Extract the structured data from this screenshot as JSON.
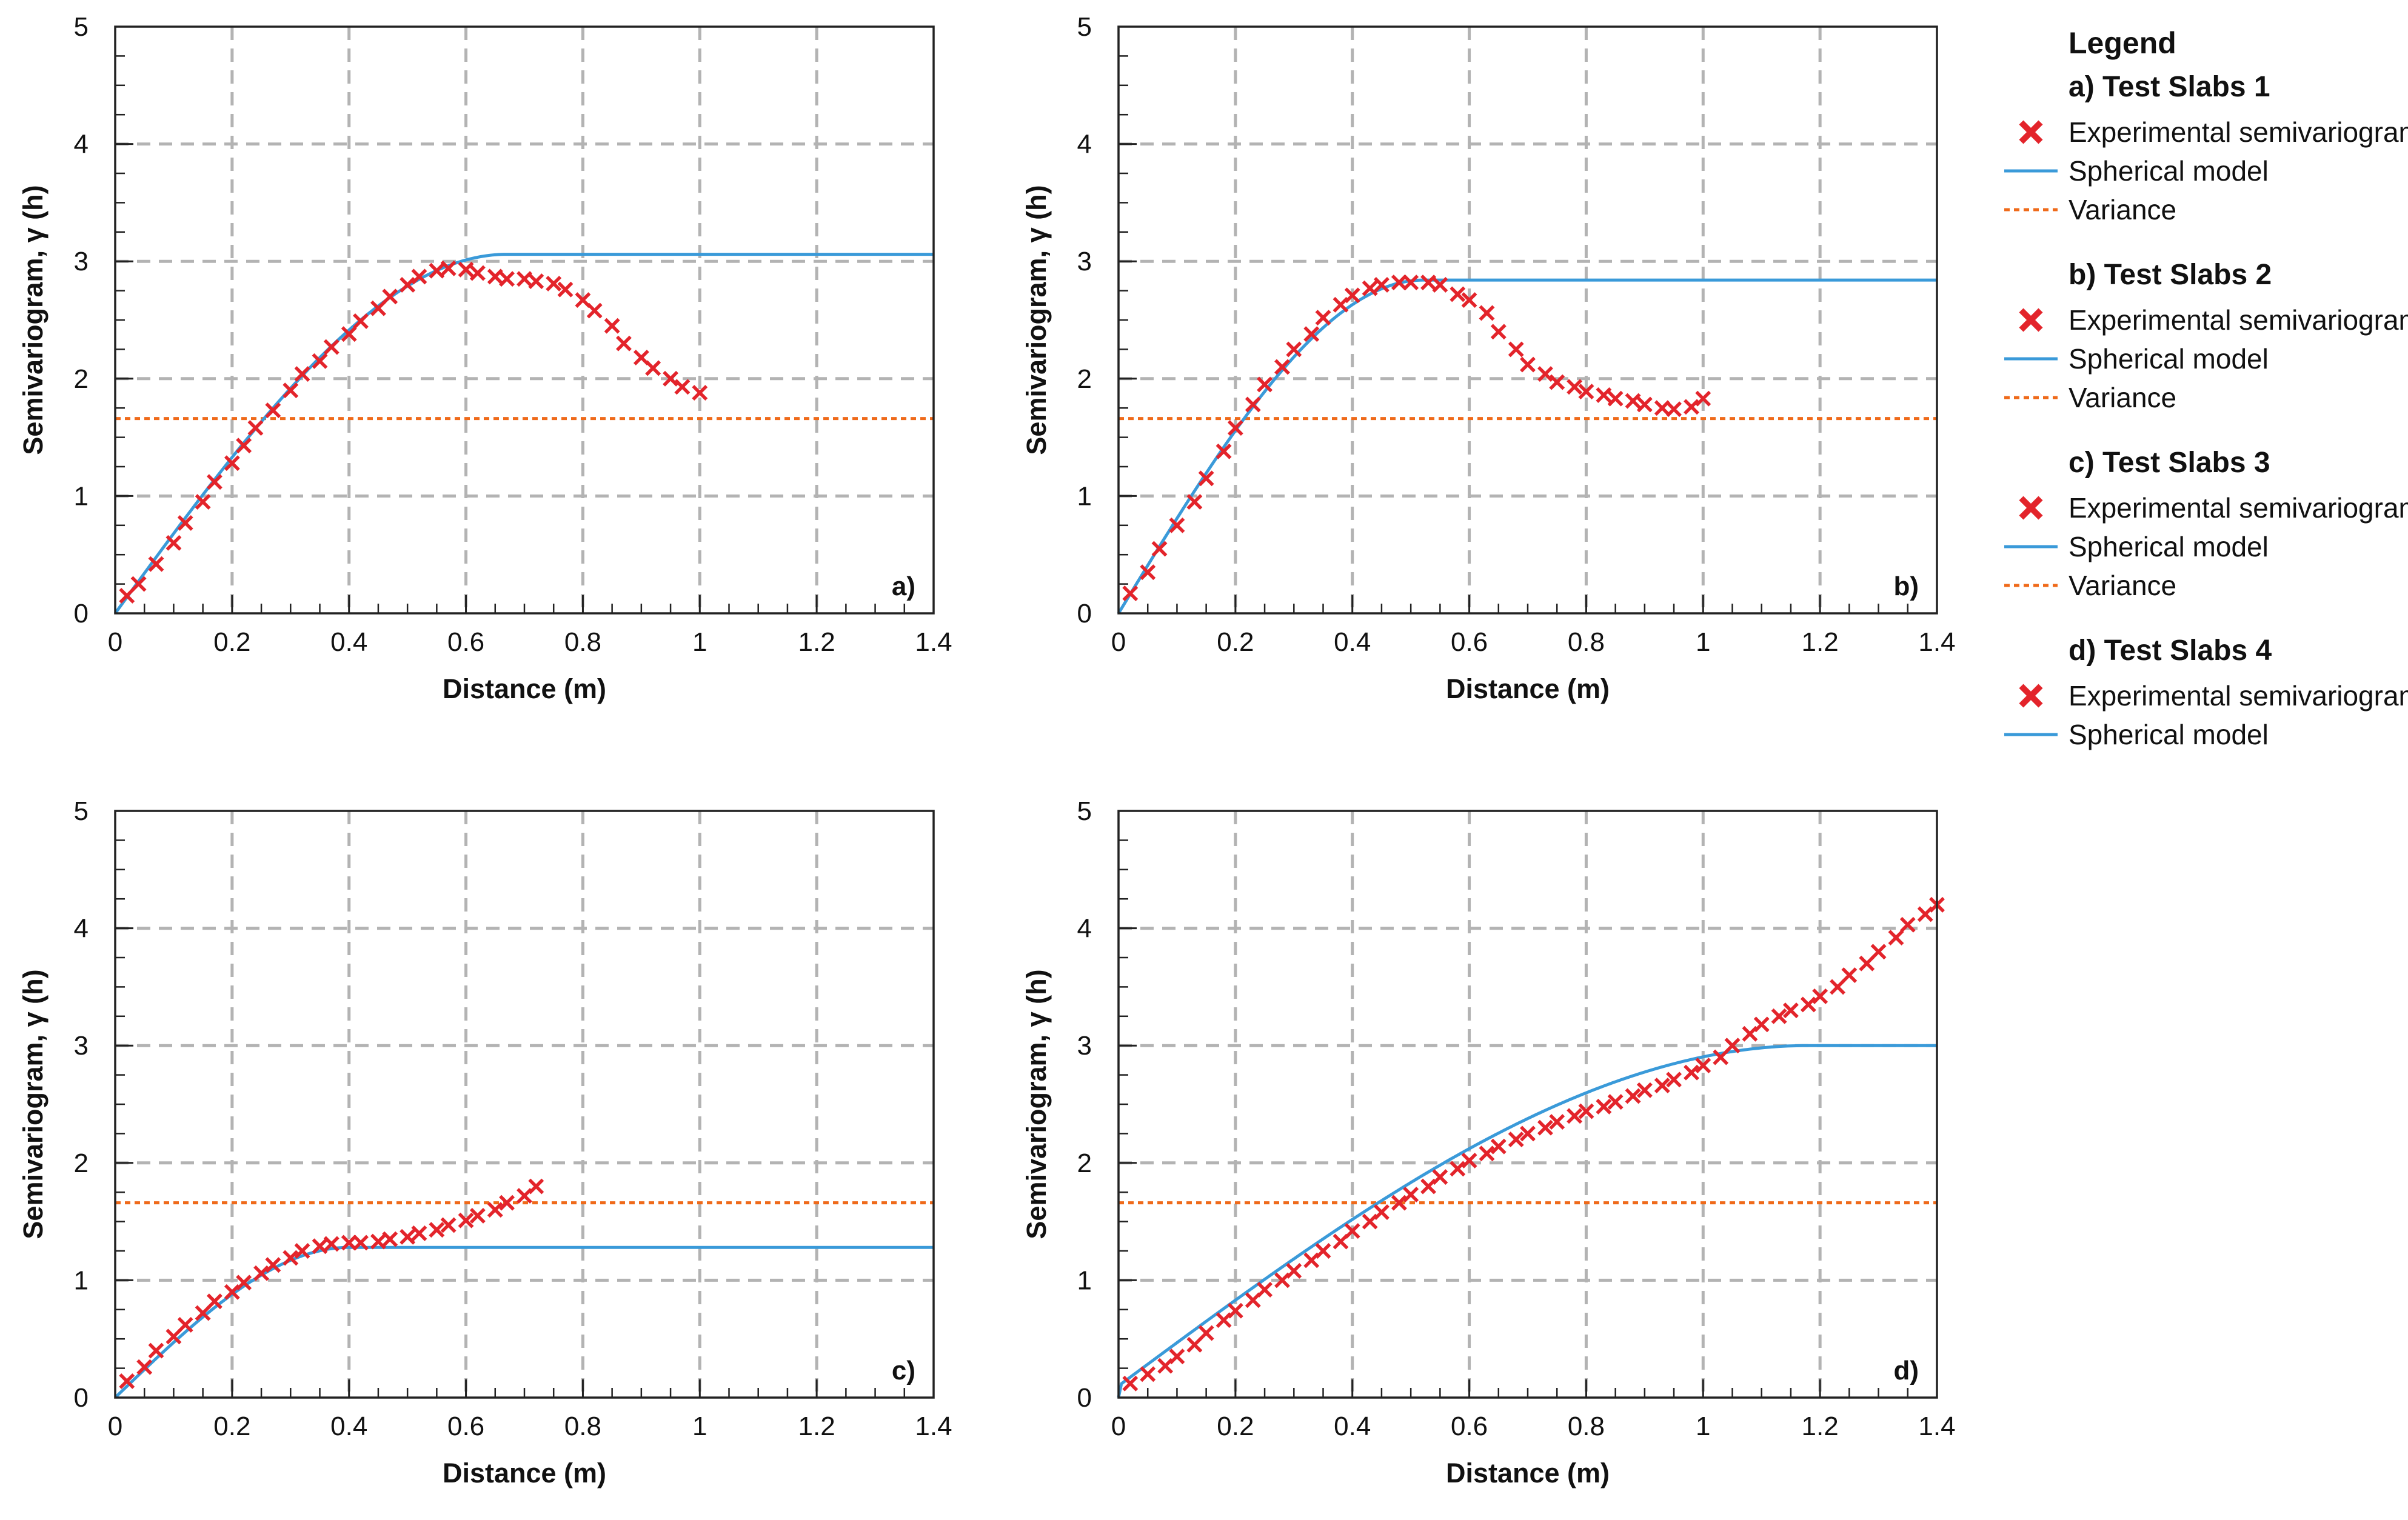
{
  "legend": {
    "title": "Legend",
    "groups": [
      {
        "title": "a) Test Slabs 1",
        "items": [
          {
            "label": "Experimental semivariogram",
            "kind": "marker"
          },
          {
            "label": "Spherical model",
            "kind": "line"
          },
          {
            "label": "Variance",
            "kind": "dotted"
          }
        ]
      },
      {
        "title": "b) Test Slabs 2",
        "items": [
          {
            "label": "Experimental semivariogram",
            "kind": "marker"
          },
          {
            "label": "Spherical model",
            "kind": "line"
          },
          {
            "label": "Variance",
            "kind": "dotted"
          }
        ]
      },
      {
        "title": "c) Test Slabs 3",
        "items": [
          {
            "label": "Experimental semivariogram",
            "kind": "marker"
          },
          {
            "label": "Spherical model",
            "kind": "line"
          },
          {
            "label": "Variance",
            "kind": "dotted"
          }
        ]
      },
      {
        "title": "d) Test Slabs 4",
        "items": [
          {
            "label": "Experimental semivariogram",
            "kind": "marker"
          },
          {
            "label": "Spherical model",
            "kind": "line"
          }
        ]
      }
    ]
  },
  "colors": {
    "experimental": "#e3242b",
    "model": "#3a9ad9",
    "variance": "#ef6a1a",
    "grid": "#b3b3b3"
  },
  "chart_data": [
    {
      "type": "scatter",
      "panel_label": "a)",
      "xlabel": "Distance (m)",
      "ylabel": "Semivariogram, γ (h)",
      "xlim": [
        0,
        1.4
      ],
      "ylim": [
        0,
        5
      ],
      "xticks": [
        0,
        0.2,
        0.4,
        0.6,
        0.8,
        1,
        1.2,
        1.4
      ],
      "xtick_labels": [
        "0",
        "0.2",
        "0.4",
        "0.6",
        "0.8",
        "1",
        "1.2",
        "1.4"
      ],
      "yticks": [
        0,
        1,
        2,
        3,
        4,
        5
      ],
      "ytick_labels": [
        "0",
        "1",
        "2",
        "3",
        "4",
        "5"
      ],
      "grid": true,
      "variance": 1.66,
      "spherical_model": {
        "nugget": 0,
        "sill": 3.06,
        "range": 0.67
      },
      "experimental": {
        "x": [
          0.02,
          0.04,
          0.07,
          0.1,
          0.12,
          0.15,
          0.17,
          0.2,
          0.22,
          0.24,
          0.27,
          0.3,
          0.32,
          0.35,
          0.37,
          0.4,
          0.42,
          0.45,
          0.47,
          0.5,
          0.52,
          0.55,
          0.57,
          0.6,
          0.62,
          0.65,
          0.67,
          0.7,
          0.72,
          0.75,
          0.77,
          0.8,
          0.82,
          0.85,
          0.87,
          0.9,
          0.92,
          0.95,
          0.97,
          1.0
        ],
        "y": [
          0.15,
          0.25,
          0.42,
          0.6,
          0.77,
          0.95,
          1.12,
          1.28,
          1.43,
          1.58,
          1.73,
          1.9,
          2.04,
          2.15,
          2.27,
          2.38,
          2.49,
          2.6,
          2.7,
          2.8,
          2.87,
          2.92,
          2.94,
          2.93,
          2.9,
          2.87,
          2.85,
          2.85,
          2.83,
          2.81,
          2.76,
          2.67,
          2.58,
          2.45,
          2.3,
          2.18,
          2.09,
          2.0,
          1.93,
          1.88
        ]
      }
    },
    {
      "type": "scatter",
      "panel_label": "b)",
      "xlabel": "Distance (m)",
      "ylabel": "Semivariogram, γ (h)",
      "xlim": [
        0,
        1.4
      ],
      "ylim": [
        0,
        5
      ],
      "xticks": [
        0,
        0.2,
        0.4,
        0.6,
        0.8,
        1,
        1.2,
        1.4
      ],
      "xtick_labels": [
        "0",
        "0.2",
        "0.4",
        "0.6",
        "0.8",
        "1",
        "1.2",
        "1.4"
      ],
      "yticks": [
        0,
        1,
        2,
        3,
        4,
        5
      ],
      "ytick_labels": [
        "0",
        "1",
        "2",
        "3",
        "4",
        "5"
      ],
      "grid": true,
      "variance": 1.66,
      "spherical_model": {
        "nugget": 0,
        "sill": 2.84,
        "range": 0.52
      },
      "experimental": {
        "x": [
          0.02,
          0.05,
          0.07,
          0.1,
          0.13,
          0.15,
          0.18,
          0.2,
          0.23,
          0.25,
          0.28,
          0.3,
          0.33,
          0.35,
          0.38,
          0.4,
          0.43,
          0.45,
          0.48,
          0.5,
          0.53,
          0.55,
          0.58,
          0.6,
          0.63,
          0.65,
          0.68,
          0.7,
          0.73,
          0.75,
          0.78,
          0.8,
          0.83,
          0.85,
          0.88,
          0.9,
          0.93,
          0.95,
          0.98,
          1.0
        ],
        "y": [
          0.17,
          0.35,
          0.55,
          0.75,
          0.95,
          1.15,
          1.38,
          1.58,
          1.78,
          1.95,
          2.1,
          2.25,
          2.38,
          2.52,
          2.63,
          2.71,
          2.77,
          2.8,
          2.82,
          2.82,
          2.82,
          2.8,
          2.72,
          2.67,
          2.56,
          2.4,
          2.25,
          2.12,
          2.04,
          1.97,
          1.93,
          1.89,
          1.86,
          1.83,
          1.81,
          1.78,
          1.75,
          1.74,
          1.76,
          1.83
        ]
      }
    },
    {
      "type": "scatter",
      "panel_label": "c)",
      "xlabel": "Distance (m)",
      "ylabel": "Semivariogram, γ (h)",
      "xlim": [
        0,
        1.4
      ],
      "ylim": [
        0,
        5
      ],
      "xticks": [
        0,
        0.2,
        0.4,
        0.6,
        0.8,
        1,
        1.2,
        1.4
      ],
      "xtick_labels": [
        "0",
        "0.2",
        "0.4",
        "0.6",
        "0.8",
        "1",
        "1.2",
        "1.4"
      ],
      "yticks": [
        0,
        1,
        2,
        3,
        4,
        5
      ],
      "ytick_labels": [
        "0",
        "1",
        "2",
        "3",
        "4",
        "5"
      ],
      "grid": true,
      "variance": 1.66,
      "spherical_model": {
        "nugget": 0,
        "sill": 1.28,
        "range": 0.4
      },
      "experimental": {
        "x": [
          0.02,
          0.05,
          0.07,
          0.1,
          0.12,
          0.15,
          0.17,
          0.2,
          0.22,
          0.25,
          0.27,
          0.3,
          0.32,
          0.35,
          0.37,
          0.4,
          0.42,
          0.45,
          0.47,
          0.5,
          0.52,
          0.55,
          0.57,
          0.6,
          0.62,
          0.65,
          0.67,
          0.7,
          0.72
        ],
        "y": [
          0.14,
          0.26,
          0.4,
          0.52,
          0.62,
          0.72,
          0.82,
          0.9,
          0.98,
          1.06,
          1.13,
          1.19,
          1.25,
          1.29,
          1.31,
          1.32,
          1.32,
          1.33,
          1.35,
          1.37,
          1.4,
          1.43,
          1.47,
          1.51,
          1.55,
          1.6,
          1.66,
          1.72,
          1.8
        ]
      }
    },
    {
      "type": "scatter",
      "panel_label": "d)",
      "xlabel": "Distance (m)",
      "ylabel": "Semivariogram, γ (h)",
      "xlim": [
        0,
        1.4
      ],
      "ylim": [
        0,
        5
      ],
      "xticks": [
        0,
        0.2,
        0.4,
        0.6,
        0.8,
        1,
        1.2,
        1.4
      ],
      "xtick_labels": [
        "0",
        "0.2",
        "0.4",
        "0.6",
        "0.8",
        "1",
        "1.2",
        "1.4"
      ],
      "yticks": [
        0,
        1,
        2,
        3,
        4,
        5
      ],
      "ytick_labels": [
        "0",
        "1",
        "2",
        "3",
        "4",
        "5"
      ],
      "grid": true,
      "variance": 1.66,
      "spherical_model": {
        "nugget": 0.1,
        "sill": 3.0,
        "range": 1.18
      },
      "experimental": {
        "x": [
          0.02,
          0.05,
          0.08,
          0.1,
          0.13,
          0.15,
          0.18,
          0.2,
          0.23,
          0.25,
          0.28,
          0.3,
          0.33,
          0.35,
          0.38,
          0.4,
          0.43,
          0.45,
          0.48,
          0.5,
          0.53,
          0.55,
          0.58,
          0.6,
          0.63,
          0.65,
          0.68,
          0.7,
          0.73,
          0.75,
          0.78,
          0.8,
          0.83,
          0.85,
          0.88,
          0.9,
          0.93,
          0.95,
          0.98,
          1.0,
          1.03,
          1.05,
          1.08,
          1.1,
          1.13,
          1.15,
          1.18,
          1.2,
          1.23,
          1.25,
          1.28,
          1.3,
          1.33,
          1.35,
          1.38,
          1.4
        ],
        "y": [
          0.12,
          0.2,
          0.27,
          0.35,
          0.45,
          0.55,
          0.66,
          0.74,
          0.83,
          0.92,
          1.0,
          1.08,
          1.17,
          1.25,
          1.33,
          1.42,
          1.5,
          1.58,
          1.66,
          1.73,
          1.8,
          1.88,
          1.95,
          2.02,
          2.08,
          2.14,
          2.2,
          2.25,
          2.3,
          2.35,
          2.4,
          2.44,
          2.48,
          2.52,
          2.57,
          2.62,
          2.66,
          2.71,
          2.77,
          2.83,
          2.9,
          3.0,
          3.1,
          3.18,
          3.25,
          3.3,
          3.35,
          3.42,
          3.5,
          3.6,
          3.7,
          3.8,
          3.92,
          4.03,
          4.12,
          4.2
        ]
      }
    }
  ]
}
